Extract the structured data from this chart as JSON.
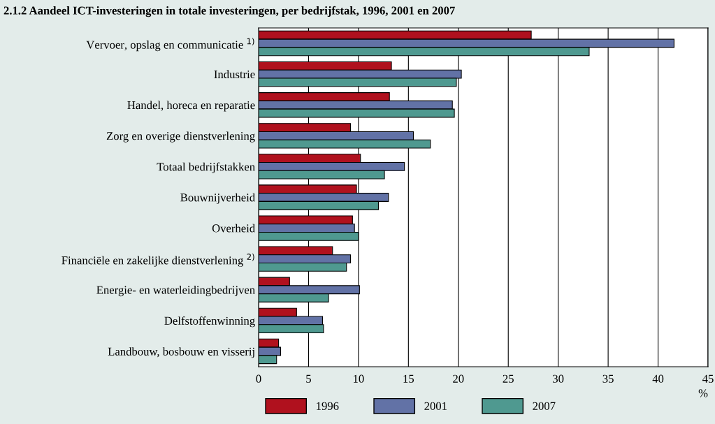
{
  "chart_data": {
    "type": "bar",
    "orientation": "horizontal",
    "title": "2.1.2 Aandeel ICT-investeringen in totale investeringen, per bedrijfstak, 1996, 2001 en 2007",
    "xlabel": "%",
    "categories": [
      "Vervoer, opslag en communicatie $^{1)}$",
      "Industrie",
      "Handel, horeca en reparatie",
      "Zorg en overige dienstverlening",
      "Totaal bedrijfstakken",
      "Bouwnijverheid",
      "Overheid",
      "Financiële en zakelijke dienstverlening $^{2)}$",
      "Energie- en waterleidingbedrijven",
      "Delfstoffenwinning",
      "Landbouw, bosbouw en visserij"
    ],
    "series": [
      {
        "name": "1996",
        "color": "#b0111e",
        "values": [
          27.3,
          13.3,
          13.1,
          9.2,
          10.2,
          9.8,
          9.4,
          7.4,
          3.1,
          3.8,
          2.0
        ]
      },
      {
        "name": "2001",
        "color": "#6272a6",
        "values": [
          41.6,
          20.3,
          19.4,
          15.5,
          14.6,
          13.0,
          9.6,
          9.2,
          10.1,
          6.4,
          2.2
        ]
      },
      {
        "name": "2007",
        "color": "#4f9990",
        "values": [
          33.1,
          19.8,
          19.6,
          17.2,
          12.6,
          12.0,
          10.0,
          8.8,
          7.0,
          6.5,
          1.8
        ]
      }
    ],
    "xlim": [
      0,
      45
    ],
    "xticks": [
      0,
      5,
      10,
      15,
      20,
      25,
      30,
      35,
      40,
      45
    ],
    "grid": "x",
    "legend": "bottom"
  }
}
